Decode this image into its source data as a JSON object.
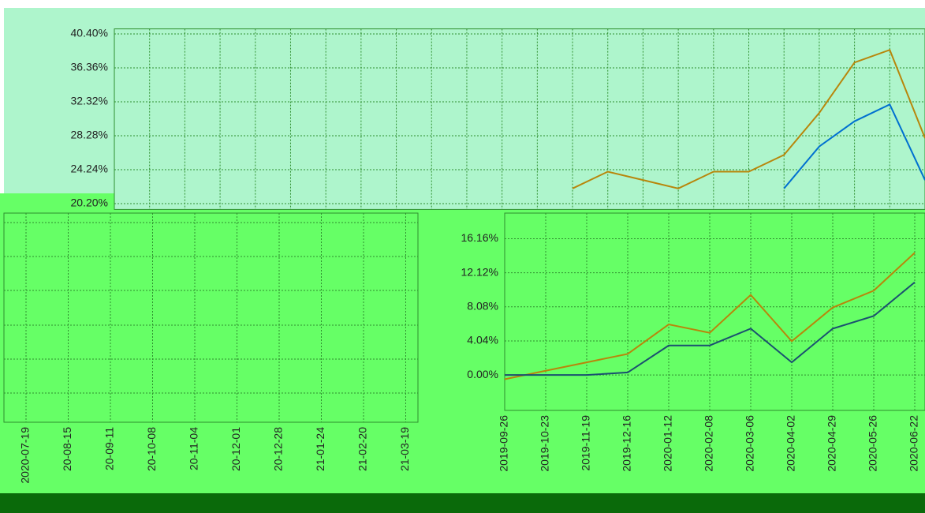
{
  "chart_data": [
    {
      "type": "line",
      "categories": [
        null,
        null,
        null,
        null,
        null,
        null,
        null,
        null,
        null,
        null,
        null,
        null,
        null,
        null,
        null,
        null,
        null,
        null,
        null,
        null,
        null,
        null,
        null,
        null
      ],
      "series": [
        {
          "color": "#b8860b",
          "values": [
            null,
            null,
            null,
            null,
            null,
            null,
            null,
            null,
            null,
            null,
            null,
            null,
            null,
            22,
            24,
            23,
            22,
            24,
            24,
            26,
            31,
            37,
            38.5,
            28
          ]
        },
        {
          "color": "#0070d0",
          "values": [
            null,
            null,
            null,
            null,
            null,
            null,
            null,
            null,
            null,
            null,
            null,
            null,
            null,
            null,
            null,
            null,
            null,
            null,
            null,
            22,
            27,
            30,
            32,
            23
          ]
        }
      ],
      "ylim": [
        19.5,
        41
      ],
      "yticks": [
        {
          "value": 20.2,
          "label": "20.20%"
        },
        {
          "value": 24.24,
          "label": "24.24%"
        },
        {
          "value": 28.28,
          "label": "28.28%"
        },
        {
          "value": 32.32,
          "label": "32.32%"
        },
        {
          "value": 36.36,
          "label": "36.36%"
        },
        {
          "value": 40.4,
          "label": "40.40%"
        }
      ],
      "grid": true
    },
    {
      "type": "line",
      "categories": [
        "2020-07-19",
        "20-08-15",
        "20-09-11",
        "20-10-08",
        "20-11-04",
        "20-12-01",
        "20-12-28",
        "21-01-24",
        "21-02-20",
        "21-03-19"
      ],
      "grid": true
    },
    {
      "type": "line",
      "categories": [
        "2019-09-26",
        "2019-10-23",
        "2019-11-19",
        "2019-12-16",
        "2020-01-12",
        "2020-02-08",
        "2020-03-06",
        "2020-04-02",
        "2020-04-29",
        "2020-05-26",
        "2020-06-22"
      ],
      "series": [
        {
          "color": "#b8860b",
          "values": [
            -0.5,
            0.5,
            1.5,
            2.5,
            6.0,
            5.0,
            9.5,
            4.0,
            8.0,
            10.0,
            14.5
          ]
        },
        {
          "color": "#1a5070",
          "values": [
            0,
            0,
            0,
            0.3,
            3.5,
            3.5,
            5.5,
            1.5,
            5.5,
            7.0,
            11.0
          ]
        }
      ],
      "ylim": [
        -4.2,
        19.2
      ],
      "yticks": [
        {
          "value": 0,
          "label": "0.00%"
        },
        {
          "value": 4.04,
          "label": "4.04%"
        },
        {
          "value": 8.08,
          "label": "8.08%"
        },
        {
          "value": 12.12,
          "label": "12.12%"
        },
        {
          "value": 16.16,
          "label": "16.16%"
        }
      ],
      "grid": true
    }
  ]
}
